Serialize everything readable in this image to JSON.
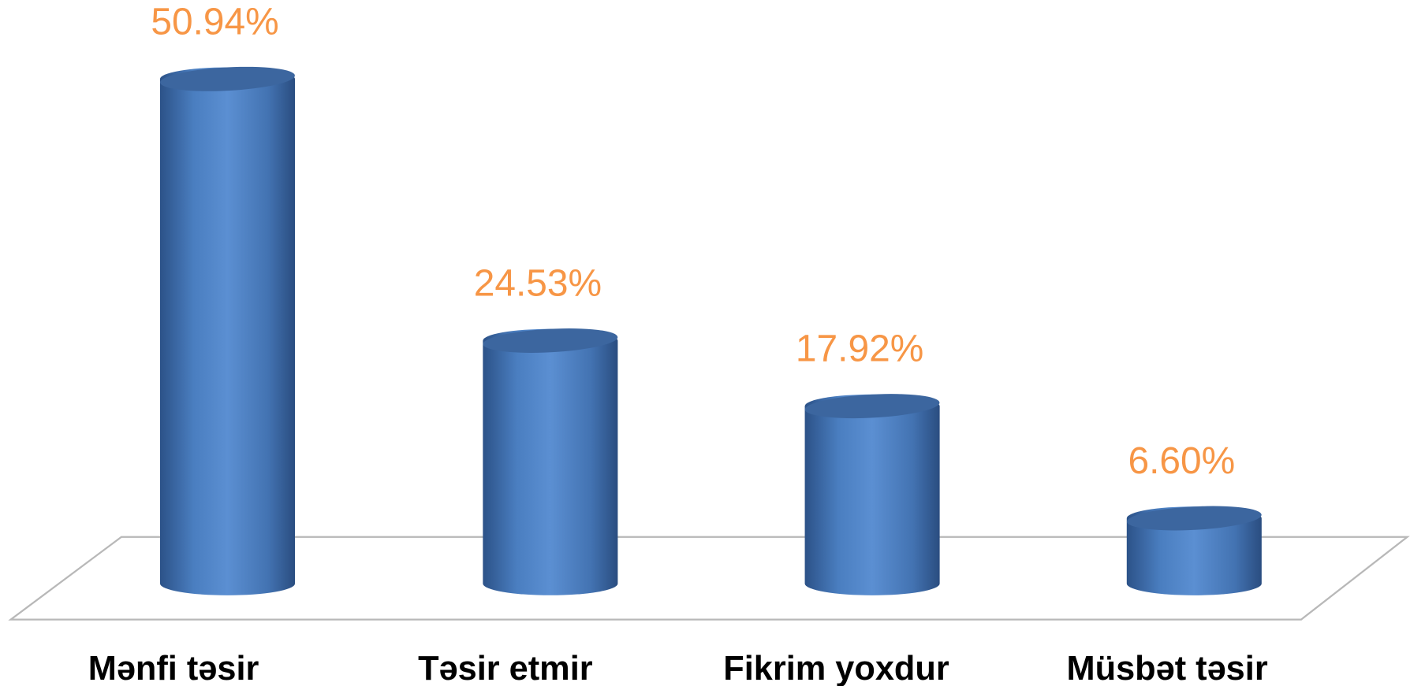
{
  "chart_data": {
    "type": "bar3d-cylinder",
    "categories": [
      "Mənfi təsir",
      "Təsir etmir",
      "Fikrim yoxdur",
      "Müsbət təsir"
    ],
    "values": [
      50.94,
      24.53,
      17.92,
      6.6
    ],
    "value_labels": [
      "50.94%",
      "24.53%",
      "17.92%",
      "6.60%"
    ],
    "color": "#4f81bd",
    "label_color": "#f79646"
  }
}
